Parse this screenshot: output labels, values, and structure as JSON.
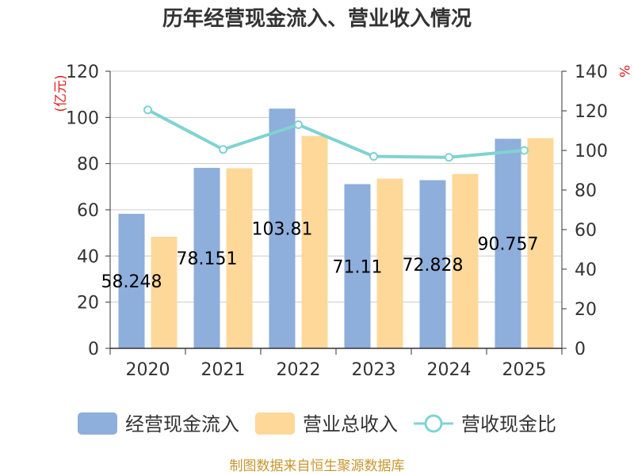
{
  "chart_data": {
    "type": "bar",
    "title": "历年经营现金流入、营业收入情况",
    "categories": [
      "2020",
      "2021",
      "2022",
      "2023",
      "2024",
      "2025"
    ],
    "left_axis": {
      "unit": "(亿元)",
      "ylim": [
        0,
        120
      ],
      "ticks": [
        "0",
        "20",
        "40",
        "60",
        "80",
        "100",
        "120"
      ]
    },
    "right_axis": {
      "unit": "%",
      "ylim": [
        0,
        140
      ],
      "ticks": [
        "0",
        "20",
        "40",
        "60",
        "80",
        "100",
        "120",
        "140"
      ]
    },
    "series": [
      {
        "name": "经营现金流入",
        "type": "bar",
        "axis": "left",
        "color": "#8eaedb",
        "values": [
          58.248,
          78.151,
          103.81,
          71.11,
          72.828,
          90.757
        ],
        "data_labels": [
          "58.248",
          "78.151",
          "103.81",
          "71.11",
          "72.828",
          "90.757"
        ]
      },
      {
        "name": "营业总收入",
        "type": "bar",
        "axis": "left",
        "color": "#fed899",
        "values": [
          48.3,
          78.0,
          92.0,
          73.5,
          75.5,
          91.0
        ]
      },
      {
        "name": "营收现金比",
        "type": "line",
        "axis": "right",
        "color": "#7fd3d2",
        "values": [
          120.5,
          100.5,
          113.0,
          97.0,
          96.5,
          100.0
        ]
      }
    ],
    "grid": true,
    "legend": "bottom",
    "source": "制图数据来自恒生聚源数据库"
  }
}
